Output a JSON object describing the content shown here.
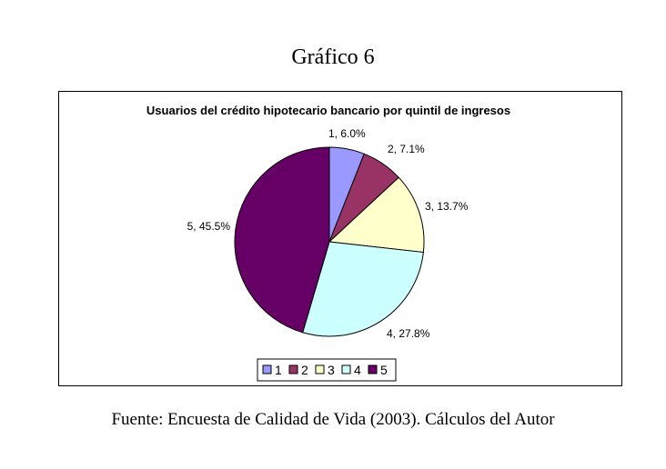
{
  "figure_caption": "Gráfico 6",
  "source_note": "Fuente: Encuesta de Calidad de Vida (2003). Cálculos del Autor",
  "chart_data": {
    "type": "pie",
    "title": "Usuarios del crédito hipotecario bancario por quintil de ingresos",
    "categories": [
      "1",
      "2",
      "3",
      "4",
      "5"
    ],
    "values": [
      6.0,
      7.1,
      13.7,
      27.8,
      45.5
    ],
    "slice_labels": [
      "1, 6.0%",
      "2, 7.1%",
      "3, 13.7%",
      "4, 27.8%",
      "5, 45.5%"
    ],
    "colors": [
      "#9999ff",
      "#993366",
      "#ffffcc",
      "#ccffff",
      "#660066"
    ],
    "legend": {
      "position": "bottom",
      "entries": [
        "1",
        "2",
        "3",
        "4",
        "5"
      ]
    }
  }
}
